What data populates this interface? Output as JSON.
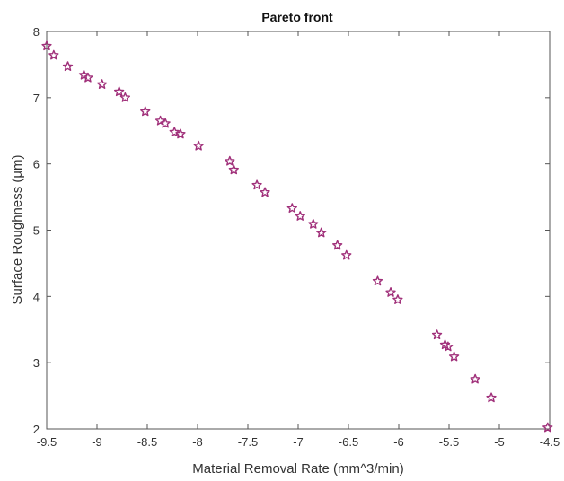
{
  "chart_data": {
    "type": "scatter",
    "title": "Pareto front",
    "xlabel": "Material Removal Rate (mm^3/min)",
    "ylabel": "Surface Roughness (µm)",
    "xlim": [
      -9.5,
      -4.5
    ],
    "ylim": [
      2,
      8
    ],
    "xticks": [
      "-9.5",
      "-9",
      "-8.5",
      "-8",
      "-7.5",
      "-7",
      "-6.5",
      "-6",
      "-5.5",
      "-5",
      "-4.5"
    ],
    "yticks": [
      "2",
      "3",
      "4",
      "5",
      "6",
      "7",
      "8"
    ],
    "grid": false,
    "marker": "star",
    "marker_color": "#a0307a",
    "x": [
      -9.5,
      -9.43,
      -9.29,
      -9.13,
      -9.09,
      -8.95,
      -8.78,
      -8.72,
      -8.52,
      -8.37,
      -8.32,
      -8.23,
      -8.17,
      -7.99,
      -7.68,
      -7.64,
      -7.41,
      -7.33,
      -7.06,
      -6.98,
      -6.85,
      -6.77,
      -6.61,
      -6.52,
      -6.21,
      -6.08,
      -6.01,
      -5.62,
      -5.54,
      -5.51,
      -5.45,
      -5.24,
      -5.08,
      -4.52
    ],
    "y": [
      7.78,
      7.64,
      7.47,
      7.34,
      7.3,
      7.2,
      7.09,
      7.0,
      6.79,
      6.65,
      6.61,
      6.48,
      6.45,
      6.27,
      6.04,
      5.91,
      5.68,
      5.57,
      5.33,
      5.21,
      5.09,
      4.96,
      4.77,
      4.62,
      4.23,
      4.06,
      3.95,
      3.42,
      3.27,
      3.24,
      3.09,
      2.75,
      2.47,
      2.02
    ]
  }
}
